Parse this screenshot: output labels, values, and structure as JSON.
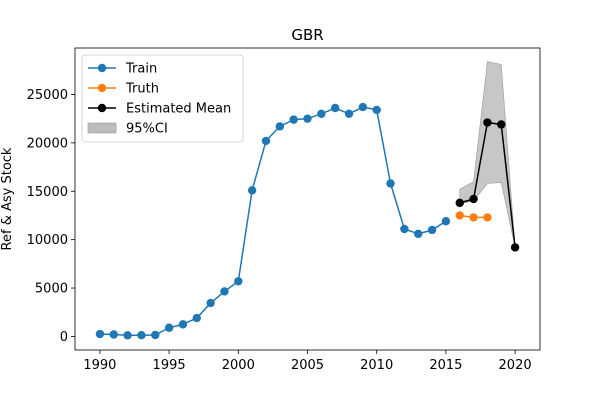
{
  "chart_data": {
    "type": "line",
    "title": "GBR",
    "xlabel": "",
    "ylabel": "Ref & Asy Stock",
    "xlim": [
      1988.2,
      2021.8
    ],
    "ylim": [
      -1400,
      29800
    ],
    "grid": false,
    "legend_position": "top-left",
    "x_ticks": [
      1990,
      1995,
      2000,
      2005,
      2010,
      2015,
      2020
    ],
    "y_ticks": [
      0,
      5000,
      10000,
      15000,
      20000,
      25000
    ],
    "x_tick_labels": [
      "1990",
      "1995",
      "2000",
      "2005",
      "2010",
      "2015",
      "2020"
    ],
    "y_tick_labels": [
      "0",
      "5000",
      "10000",
      "15000",
      "20000",
      "25000"
    ],
    "series": [
      {
        "name": "Train",
        "color": "#1f77b4",
        "x": [
          1990,
          1991,
          1992,
          1993,
          1994,
          1995,
          1996,
          1997,
          1998,
          1999,
          2000,
          2001,
          2002,
          2003,
          2004,
          2005,
          2006,
          2007,
          2008,
          2009,
          2010,
          2011,
          2012,
          2013,
          2014,
          2015
        ],
        "y": [
          250,
          200,
          120,
          130,
          150,
          900,
          1250,
          1900,
          3450,
          4650,
          5700,
          15100,
          20200,
          21700,
          22400,
          22500,
          23000,
          23600,
          23000,
          23700,
          23400,
          15800,
          11100,
          10600,
          11000,
          11900
        ]
      },
      {
        "name": "Truth",
        "color": "#ff7f0e",
        "x": [
          2016,
          2017,
          2018
        ],
        "y": [
          12500,
          12300,
          12300
        ]
      },
      {
        "name": "Estimated Mean",
        "color": "#000000",
        "x": [
          2016,
          2017,
          2018,
          2019,
          2020
        ],
        "y": [
          13800,
          14200,
          22100,
          21900,
          9200
        ]
      }
    ],
    "band": {
      "name": "95%CI",
      "color": "#bdbdbd",
      "x": [
        2016,
        2017,
        2018,
        2019,
        2020
      ],
      "lower": [
        13700,
        14000,
        15800,
        15900,
        9200
      ],
      "upper": [
        15200,
        16000,
        28400,
        28100,
        9200
      ]
    }
  }
}
